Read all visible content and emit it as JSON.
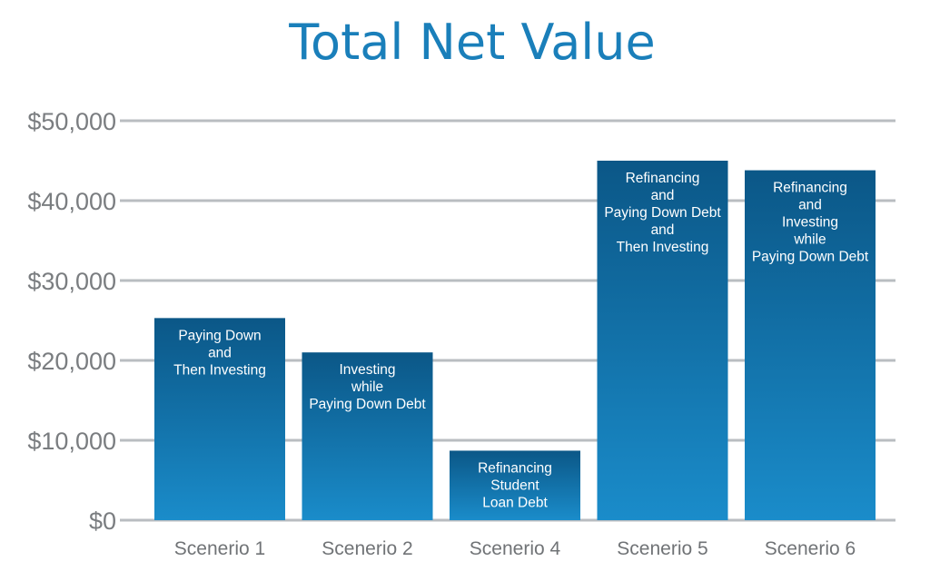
{
  "chart_data": {
    "type": "bar",
    "title": "Total Net Value",
    "xlabel": "",
    "ylabel": "",
    "ylim": [
      0,
      50000
    ],
    "y_ticks": [
      0,
      10000,
      20000,
      30000,
      40000,
      50000
    ],
    "y_tick_labels": [
      "$0",
      "$10,000",
      "$20,000",
      "$30,000",
      "$40,000",
      "$50,000"
    ],
    "grid": true,
    "legend": "none",
    "categories": [
      "Scenerio 1",
      "Scenerio 2",
      "Scenerio 4",
      "Scenerio 5",
      "Scenerio 6"
    ],
    "values": [
      25300,
      21000,
      8700,
      45000,
      43800
    ],
    "bar_labels": [
      [
        "Paying Down",
        "and",
        "Then Investing"
      ],
      [
        "Investing",
        "while",
        "Paying Down Debt"
      ],
      [
        "Refinancing",
        "Student",
        "Loan Debt"
      ],
      [
        "Refinancing",
        "and",
        "Paying Down Debt",
        "and",
        "Then Investing"
      ],
      [
        "Refinancing",
        "and",
        "Investing",
        "while",
        "Paying Down Debt"
      ]
    ],
    "colors": {
      "title": "#1a7fba",
      "bar_top": "#0b5787",
      "bar_bottom": "#1a8cca",
      "grid": "#b9bdc1",
      "tick_text": "#7a7d80",
      "bar_text": "#ffffff"
    }
  }
}
